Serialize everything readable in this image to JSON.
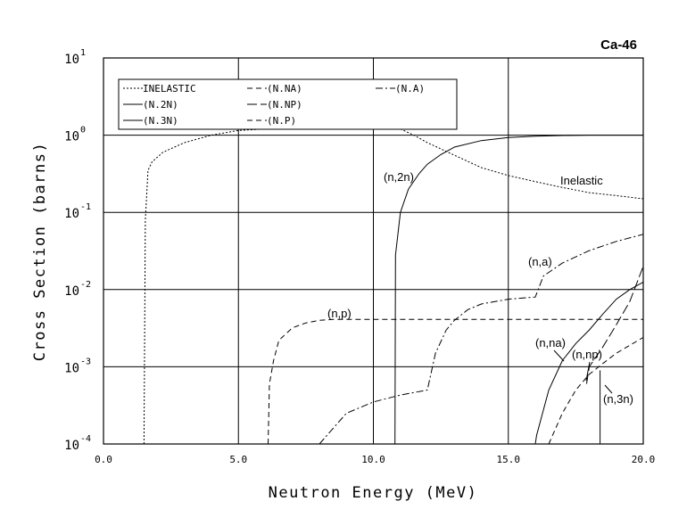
{
  "chart_data": {
    "type": "line",
    "title": "Ca-46",
    "xlabel": "Neutron Energy (MeV)",
    "ylabel": "Cross Section (barns)",
    "xlim": [
      0,
      20
    ],
    "ylim": [
      0.0001,
      10
    ],
    "yscale": "log",
    "grid": true,
    "legend_position": "top-left",
    "x_ticks": [
      "0.0",
      "5.0",
      "10.0",
      "15.0",
      "20.0"
    ],
    "y_tick_exponents": [
      "1",
      "0",
      "-1",
      "-2",
      "-3",
      "-4"
    ],
    "y_tick_base": "10",
    "series": [
      {
        "name": "INELASTIC",
        "label": "Inelastic",
        "dash": "dot",
        "x": [
          1.5,
          1.55,
          1.65,
          1.8,
          2.2,
          3.0,
          4.0,
          5.0,
          6.0,
          7.0,
          8.0,
          9.0,
          10.0,
          11.0,
          11.5,
          12.0,
          13.0,
          14.0,
          15.0,
          16.0,
          17.0,
          18.0,
          19.0,
          20.0
        ],
        "y": [
          0.0001,
          0.08,
          0.35,
          0.45,
          0.6,
          0.8,
          1.0,
          1.15,
          1.2,
          1.22,
          1.22,
          1.22,
          1.22,
          1.2,
          1.0,
          0.8,
          0.55,
          0.38,
          0.3,
          0.25,
          0.21,
          0.18,
          0.165,
          0.15
        ]
      },
      {
        "name": "(N.NA)",
        "label": "(n,na)",
        "dash": "dash",
        "x": [
          16.5,
          17.0,
          17.5,
          18.0,
          18.5,
          19.0,
          19.5,
          20.0
        ],
        "y": [
          0.0001,
          0.00025,
          0.0005,
          0.0008,
          0.0011,
          0.0015,
          0.0019,
          0.0024
        ]
      },
      {
        "name": "(N.A)",
        "label": "(n,a)",
        "dash": "dashdot",
        "x": [
          8.0,
          9.0,
          10.0,
          11.0,
          12.0,
          12.3,
          12.7,
          13.0,
          13.5,
          14.0,
          15.0,
          16.0,
          16.3,
          17.0,
          18.0,
          19.0,
          20.0
        ],
        "y": [
          0.0001,
          0.00025,
          0.00035,
          0.00043,
          0.0005,
          0.0015,
          0.003,
          0.004,
          0.0055,
          0.0065,
          0.0075,
          0.008,
          0.015,
          0.022,
          0.032,
          0.042,
          0.052
        ]
      },
      {
        "name": "(N.2N)",
        "label": "(n,2n)",
        "dash": "solid",
        "x": [
          10.8,
          10.82,
          11.0,
          11.3,
          11.7,
          12.0,
          12.5,
          13.0,
          14.0,
          15.0,
          16.0,
          17.0,
          18.0,
          19.0,
          20.0
        ],
        "y": [
          0.0001,
          0.028,
          0.1,
          0.2,
          0.32,
          0.42,
          0.56,
          0.7,
          0.85,
          0.93,
          0.97,
          0.99,
          1.0,
          1.0,
          1.0
        ]
      },
      {
        "name": "(N.NP)",
        "label": "(n,np)",
        "dash": "longdash",
        "x": [
          17.9,
          18.0,
          18.5,
          19.0,
          19.5,
          20.0
        ],
        "y": [
          0.0006,
          0.001,
          0.0018,
          0.0035,
          0.007,
          0.02
        ]
      },
      {
        "name": "(N.3N)",
        "label": "(n,3n)",
        "dash": "solid",
        "x": [
          16.0,
          16.05,
          16.5,
          17.0,
          17.5,
          18.0,
          18.5,
          19.0,
          19.5,
          20.0
        ],
        "y": [
          0.0001,
          0.00013,
          0.0005,
          0.0012,
          0.002,
          0.003,
          0.0048,
          0.0075,
          0.01,
          0.0125
        ]
      },
      {
        "name": "(N.P)",
        "label": "(n,p)",
        "dash": "dash",
        "x": [
          6.1,
          6.15,
          6.3,
          6.5,
          7.0,
          7.5,
          8.0,
          8.5,
          9.0,
          10.0,
          12.0,
          14.0,
          16.0,
          18.0,
          20.0
        ],
        "y": [
          0.0001,
          0.0006,
          0.0012,
          0.0022,
          0.0032,
          0.0037,
          0.004,
          0.0041,
          0.0041,
          0.0041,
          0.0041,
          0.0041,
          0.0041,
          0.0041,
          0.0041
        ]
      }
    ],
    "extra_lines": [
      {
        "name": "(n,3n) threshold",
        "dash": "solid",
        "x": [
          18.4,
          18.4
        ],
        "y": [
          0.0001,
          0.0009
        ]
      }
    ]
  }
}
